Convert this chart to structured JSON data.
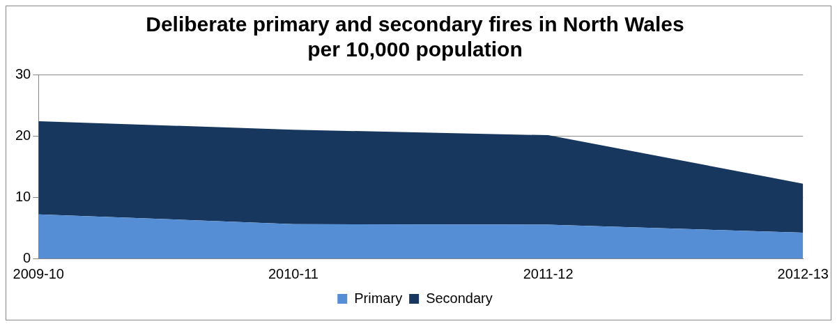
{
  "chart_data": {
    "type": "area",
    "title": "Deliberate primary and secondary fires in North Wales\nper 10,000 population",
    "categories": [
      "2009-10",
      "2010-11",
      "2011-12",
      "2012-13"
    ],
    "series": [
      {
        "name": "Primary",
        "color": "#558ed5",
        "values": [
          7.2,
          5.6,
          5.5,
          4.2
        ]
      },
      {
        "name": "Secondary",
        "color": "#17375e",
        "values": [
          15.2,
          15.4,
          14.6,
          8.0
        ]
      }
    ],
    "stacked": true,
    "ylim": [
      0,
      30
    ],
    "yticks": [
      0,
      10,
      20,
      30
    ],
    "grid": "y",
    "legend": "bottom"
  }
}
